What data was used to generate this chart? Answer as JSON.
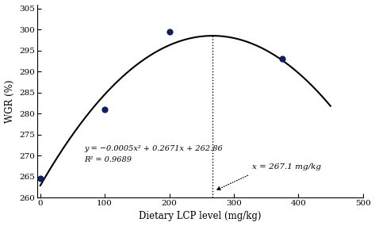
{
  "x_data": [
    0,
    100,
    200,
    375
  ],
  "y_data": [
    264.5,
    281.0,
    299.5,
    293.0
  ],
  "equation_a": -0.0005,
  "equation_b": 0.2671,
  "equation_c": 262.86,
  "r_squared": 0.9689,
  "optimal_x": 267.1,
  "xlabel": "Dietary LCP level (mg/kg)",
  "ylabel": "WGR (%)",
  "xlim": [
    -5,
    500
  ],
  "ylim": [
    260,
    306
  ],
  "x_ticks": [
    0,
    100,
    200,
    300,
    400,
    500
  ],
  "y_ticks": [
    260,
    265,
    270,
    275,
    280,
    285,
    290,
    295,
    300,
    305
  ],
  "dot_color": "#0d1f5c",
  "line_color": "#000000",
  "annotation_x": "x = 267.1 mg/kg",
  "eq_label_line1": "y = −0.0005x² + 0.2671x + 262.86",
  "eq_label_line2": "R² = 0.9689"
}
